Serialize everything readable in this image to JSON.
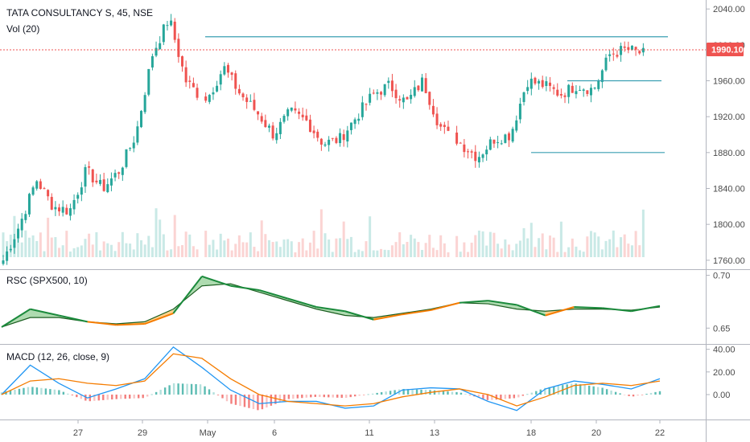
{
  "header": {
    "symbol_label": "TATA CONSULTANCY S, 45, NSE",
    "vol_label": "Vol (20)",
    "rsc_label": "RSC (SPX500, 10)",
    "macd_label": "MACD (12, 26, close, 9)"
  },
  "last_price": "1990.10",
  "colors": {
    "up": "#26a69a",
    "down": "#ef5350",
    "up_dark": "#1b8a3c",
    "price_tag": "#ef5350",
    "hline": "#3a9fb2",
    "macd_line": "#2196f3",
    "signal_line": "#f57c00"
  },
  "chart_data": [
    {
      "type": "candlestick",
      "title": "TATA CONSULTANCY S, 45, NSE",
      "y_ticks": [
        "2040.00",
        "2000.00",
        "1960.00",
        "1920.00",
        "1880.00",
        "1840.00",
        "1800.00",
        "1760.00"
      ],
      "ylim": [
        1750,
        2050
      ],
      "x_ticks": [
        "27",
        "29",
        "May",
        "6",
        "11",
        "13",
        "18",
        "20",
        "22"
      ],
      "horizontal_levels": [
        2009,
        1960,
        1880
      ],
      "current_price": 1990.1,
      "close_path": [
        1760,
        1800,
        1850,
        1820,
        1815,
        1860,
        1840,
        1860,
        1900,
        1990,
        2030,
        1960,
        1940,
        1975,
        1945,
        1925,
        1900,
        1925,
        1915,
        1890,
        1895,
        1920,
        1945,
        1955,
        1935,
        1960,
        1910,
        1890,
        1875,
        1895,
        1900,
        1960,
        1955,
        1945,
        1955,
        1950,
        1990,
        1995,
        1990
      ],
      "grid": false
    },
    {
      "type": "area",
      "title": "RSC (SPX500, 10)",
      "y_ticks": [
        "0.70",
        "0.65"
      ],
      "ylim": [
        0.635,
        0.705
      ],
      "rsc": [
        0.651,
        0.668,
        0.662,
        0.656,
        0.653,
        0.654,
        0.664,
        0.699,
        0.69,
        0.686,
        0.678,
        0.67,
        0.666,
        0.658,
        0.663,
        0.667,
        0.674,
        0.676,
        0.672,
        0.662,
        0.67,
        0.669,
        0.666,
        0.671
      ],
      "rsc_ma": [
        0.651,
        0.66,
        0.66,
        0.656,
        0.654,
        0.656,
        0.668,
        0.69,
        0.692,
        0.684,
        0.676,
        0.668,
        0.662,
        0.66,
        0.664,
        0.668,
        0.674,
        0.673,
        0.668,
        0.666,
        0.668,
        0.668,
        0.667,
        0.67
      ],
      "grid": false
    },
    {
      "type": "line",
      "title": "MACD (12, 26, close, 9)",
      "y_ticks": [
        "40.00",
        "20.00",
        "0.00"
      ],
      "ylim": [
        -22,
        44
      ],
      "macd": [
        0,
        26,
        10,
        -3,
        5,
        14,
        42,
        24,
        4,
        -8,
        -6,
        -6,
        -12,
        -10,
        4,
        6,
        5,
        -6,
        -14,
        5,
        12,
        9,
        5,
        14
      ],
      "signal": [
        0,
        12,
        14,
        10,
        8,
        12,
        36,
        32,
        14,
        0,
        -6,
        -8,
        -10,
        -8,
        -2,
        2,
        5,
        0,
        -10,
        -2,
        8,
        10,
        8,
        12
      ],
      "histogram": [
        2,
        7,
        4,
        -6,
        -4,
        -3,
        10,
        9,
        -8,
        -14,
        -4,
        -2,
        -3,
        1,
        5,
        4,
        2,
        -5,
        -3,
        6,
        10,
        6,
        -2,
        3
      ],
      "grid": false
    }
  ]
}
